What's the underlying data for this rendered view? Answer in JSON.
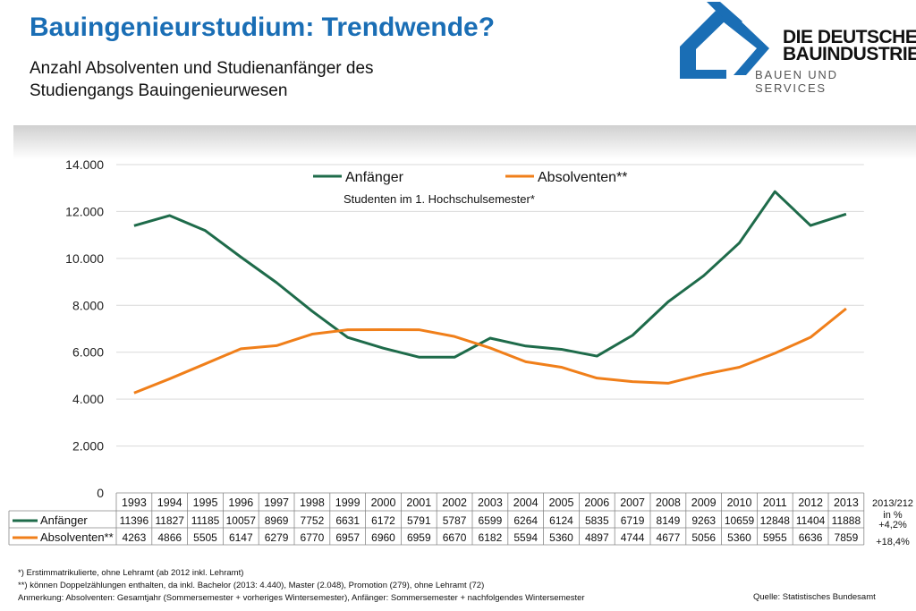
{
  "header": {
    "title": "Bauingenieurstudium: Trendwende?",
    "subtitle_line1": "Anzahl Absolventen und Studienanfänger des",
    "subtitle_line2": "Studiengangs Bauingenieurwesen"
  },
  "logo": {
    "line1": "DIE DEUTSCHE",
    "line2": "BAUINDUSTRIE",
    "line3": "BAUEN UND SERVICES",
    "color": "#1a6eb5"
  },
  "chart_data": {
    "type": "line",
    "title": "",
    "annotation": "Studenten im 1. Hochschulsemester*",
    "legend_position": "top",
    "x": [
      "1993",
      "1994",
      "1995",
      "1996",
      "1997",
      "1998",
      "1999",
      "2000",
      "2001",
      "2002",
      "2003",
      "2004",
      "2005",
      "2006",
      "2007",
      "2008",
      "2009",
      "2010",
      "2011",
      "2012",
      "2013"
    ],
    "ylim": [
      0,
      14000
    ],
    "yticks": [
      "0",
      "2.000",
      "4.000",
      "6.000",
      "8.000",
      "10.000",
      "12.000",
      "14.000"
    ],
    "grid": true,
    "series": [
      {
        "name": "Anfänger",
        "color": "#1e6b4a",
        "values": [
          11396,
          11827,
          11185,
          10057,
          8969,
          7752,
          6631,
          6172,
          5791,
          5787,
          6599,
          6264,
          6124,
          5835,
          6719,
          8149,
          9263,
          10659,
          12848,
          11404,
          11888
        ],
        "change": "+4,2%"
      },
      {
        "name": "Absolventen**",
        "color": "#f07f1a",
        "values": [
          4263,
          4866,
          5505,
          6147,
          6279,
          6770,
          6957,
          6960,
          6959,
          6670,
          6182,
          5594,
          5360,
          4897,
          4744,
          4677,
          5056,
          5360,
          5955,
          6636,
          7859
        ],
        "change": "+18,4%"
      }
    ],
    "change_header1": "2013/212",
    "change_header2": "in %"
  },
  "notes": {
    "n1": "*) Erstimmatrikulierte, ohne Lehramt (ab 2012 inkl. Lehramt)",
    "n2": "**) können Doppelzählungen enthalten, da inkl. Bachelor (2013: 4.440), Master (2.048), Promotion (279), ohne Lehramt (72)",
    "n3": "Anmerkung: Absolventen: Gesamtjahr (Sommersemester + vorheriges Wintersemester), Anfänger: Sommersemester + nachfolgendes Wintersemester",
    "source": "Quelle: Statistisches Bundesamt"
  }
}
